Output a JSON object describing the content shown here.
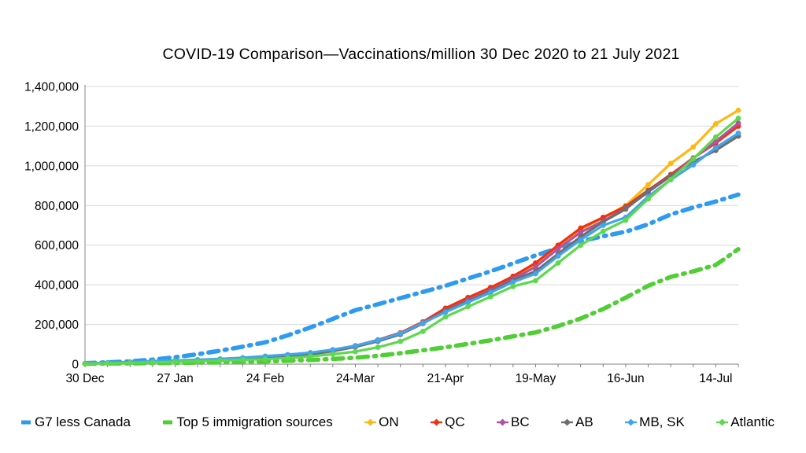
{
  "chart_data": {
    "type": "line",
    "title": "COVID-19 Comparison—Vaccinations/million 30 Dec 2020 to 21 July 2021",
    "xlabel": "",
    "ylabel": "",
    "ylim": [
      0,
      1400000
    ],
    "y_tick_step": 200000,
    "y_tick_labels": [
      "0",
      "200,000",
      "400,000",
      "600,000",
      "800,000",
      "1,000,000",
      "1,200,000",
      "1,400,000"
    ],
    "grid": "horizontal-only",
    "legend_position": "bottom",
    "x_weekly_dates": [
      "30 Dec",
      "6 Jan",
      "13 Jan",
      "20 Jan",
      "27 Jan",
      "3 Feb",
      "10 Feb",
      "17 Feb",
      "24 Feb",
      "3 Mar",
      "10 Mar",
      "17 Mar",
      "24 Mar",
      "31 Mar",
      "7 Apr",
      "14 Apr",
      "21 Apr",
      "28 Apr",
      "5 May",
      "12 May",
      "19 May",
      "26 May",
      "2 Jun",
      "9 Jun",
      "16 Jun",
      "23 Jun",
      "30 Jun",
      "7 Jul",
      "14 Jul",
      "21 Jul"
    ],
    "x_major_tick_labels": [
      "30 Dec",
      "27 Jan",
      "24 Feb",
      "24-Mar",
      "21-Apr",
      "19-May",
      "16-Jun",
      "14-Jul"
    ],
    "x_major_tick_indices": [
      0,
      4,
      8,
      12,
      16,
      20,
      24,
      28
    ],
    "series": [
      {
        "name": "G7 less Canada",
        "color": "#2E9BF0",
        "style": "dashed",
        "marker": "none",
        "values": [
          5000,
          9000,
          14000,
          23000,
          35000,
          50000,
          68000,
          88000,
          110000,
          145000,
          185000,
          228000,
          272000,
          302000,
          333000,
          364000,
          395000,
          432000,
          468000,
          508000,
          548000,
          585000,
          620000,
          645000,
          668000,
          705000,
          755000,
          790000,
          820000,
          855000
        ]
      },
      {
        "name": "Top 5 immigration sources",
        "color": "#4FCE35",
        "style": "dashed",
        "marker": "none",
        "values": [
          2000,
          3000,
          4000,
          5000,
          6000,
          8000,
          9000,
          11000,
          13000,
          17000,
          21000,
          26000,
          32000,
          42000,
          55000,
          70000,
          85000,
          102000,
          120000,
          140000,
          160000,
          192000,
          230000,
          278000,
          335000,
          395000,
          440000,
          468000,
          500000,
          580000
        ]
      },
      {
        "name": "ON",
        "color": "#FDB813",
        "style": "solid",
        "marker": "circle",
        "values": [
          3000,
          6000,
          9000,
          12000,
          15000,
          18000,
          22000,
          26000,
          31000,
          39000,
          50000,
          67000,
          90000,
          119000,
          155000,
          210000,
          278000,
          330000,
          381000,
          440000,
          500000,
          595000,
          680000,
          738000,
          800000,
          905000,
          1012000,
          1095000,
          1212000,
          1280000
        ]
      },
      {
        "name": "QC",
        "color": "#F2300F",
        "style": "solid",
        "marker": "circle",
        "values": [
          3000,
          6000,
          10000,
          13000,
          16000,
          19000,
          23000,
          28000,
          33000,
          41000,
          52000,
          69000,
          92000,
          122000,
          158000,
          213000,
          282000,
          336000,
          386000,
          443000,
          510000,
          600000,
          686000,
          740000,
          795000,
          877000,
          956000,
          1040000,
          1115000,
          1200000
        ]
      },
      {
        "name": "BC",
        "color": "#B2539F",
        "style": "solid",
        "marker": "circle",
        "values": [
          2000,
          5000,
          8000,
          11000,
          14000,
          17000,
          20000,
          25000,
          30000,
          38000,
          49000,
          66000,
          88000,
          117000,
          152000,
          207000,
          270000,
          322000,
          372000,
          430000,
          490000,
          582000,
          665000,
          722000,
          785000,
          868000,
          948000,
          1038000,
          1123000,
          1215000
        ]
      },
      {
        "name": "AB",
        "color": "#6D6E71",
        "style": "solid",
        "marker": "circle",
        "values": [
          2000,
          5000,
          8000,
          11000,
          14000,
          17000,
          21000,
          26000,
          31000,
          39000,
          50000,
          66000,
          87000,
          115000,
          150000,
          205000,
          268000,
          318000,
          368000,
          424000,
          468000,
          556000,
          642000,
          718000,
          782000,
          873000,
          950000,
          1020000,
          1078000,
          1150000
        ]
      },
      {
        "name": "MB, SK",
        "color": "#41A5EE",
        "style": "solid",
        "marker": "circle",
        "values": [
          4000,
          7000,
          11000,
          15000,
          18000,
          22000,
          26000,
          32000,
          40000,
          48000,
          58000,
          73000,
          93000,
          120000,
          155000,
          208000,
          262000,
          312000,
          361000,
          414000,
          456000,
          545000,
          627000,
          700000,
          740000,
          845000,
          930000,
          1005000,
          1092000,
          1165000
        ]
      },
      {
        "name": "Atlantic",
        "color": "#5ED84E",
        "style": "solid",
        "marker": "circle",
        "values": [
          2000,
          4000,
          6000,
          9000,
          12000,
          15000,
          18000,
          22000,
          25000,
          31000,
          39000,
          50000,
          63000,
          85000,
          115000,
          165000,
          238000,
          290000,
          340000,
          392000,
          421000,
          510000,
          600000,
          670000,
          726000,
          833000,
          932000,
          1035000,
          1145000,
          1240000
        ]
      }
    ],
    "axis_colors": {
      "gridline": "#D9D9D9",
      "axis_line": "#9B9B9B",
      "tick": "#808080",
      "label": "#000000"
    }
  }
}
